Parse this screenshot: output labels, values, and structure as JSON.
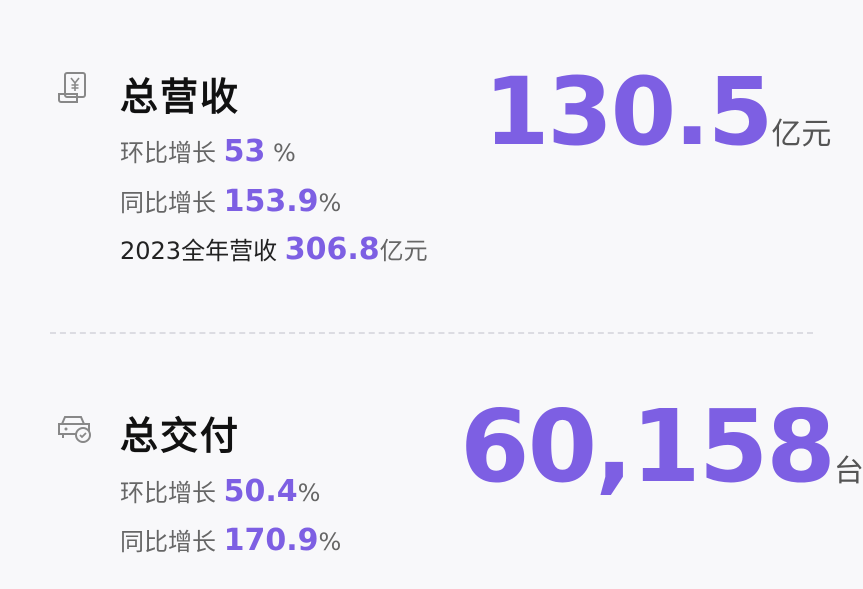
{
  "accent_color": "#7d5fe3",
  "revenue": {
    "icon": "receipt-yen-icon",
    "title": "总营收",
    "value": "130.5",
    "value_unit": "亿元",
    "rows": [
      {
        "label": "环比增长",
        "value": "53",
        "unit": "%"
      },
      {
        "label": "同比增长",
        "value": "153.9",
        "unit": "%"
      },
      {
        "label": "2023全年营收",
        "value": "306.8",
        "unit": "亿元"
      }
    ]
  },
  "delivery": {
    "icon": "car-check-icon",
    "title": "总交付",
    "value": "60,158",
    "value_unit": "台",
    "rows": [
      {
        "label": "环比增长",
        "value": "50.4",
        "unit": "%"
      },
      {
        "label": "同比增长",
        "value": "170.9",
        "unit": "%"
      }
    ]
  }
}
